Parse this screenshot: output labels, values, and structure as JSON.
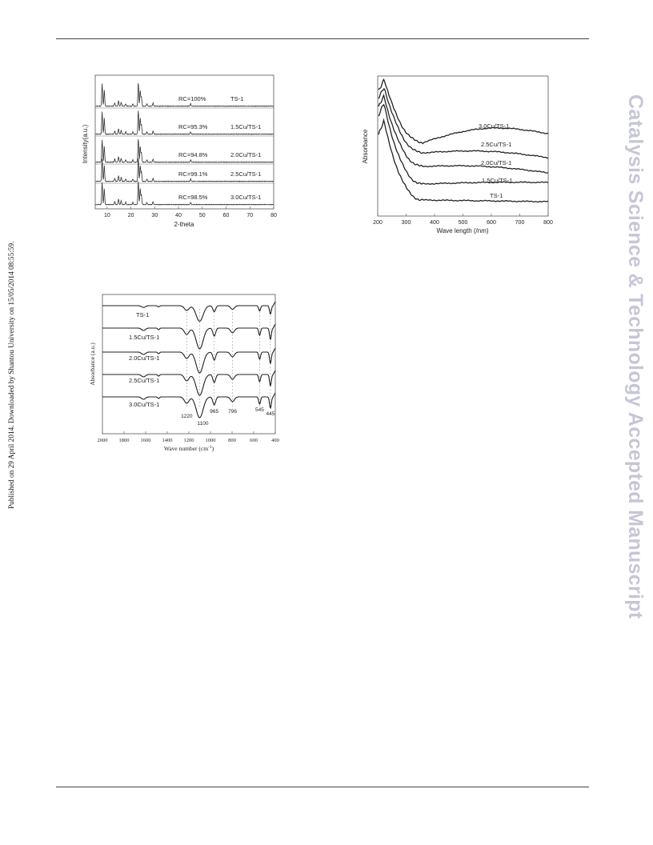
{
  "side_note": "Published on 29 April 2014. Downloaded by Shantou University on 15/05/2014 08:55:59.",
  "watermark": "Catalysis Science & Technology Accepted Manuscript",
  "chart_data": [
    {
      "type": "line",
      "ylabel": "Intensity(a.u.)",
      "xlabel": "2-theta",
      "x_ticks": [
        "10",
        "20",
        "30",
        "40",
        "50",
        "60",
        "70",
        "80"
      ],
      "xlim": [
        5,
        80
      ],
      "traces": [
        {
          "rc": "RC=100%",
          "sample": "TS-1"
        },
        {
          "rc": "RC=95.3%",
          "sample": "1.5Cu/TS-1"
        },
        {
          "rc": "RC=94.8%",
          "sample": "2.0Cu/TS-1"
        },
        {
          "rc": "RC=99.1%",
          "sample": "2.5Cu/TS-1"
        },
        {
          "rc": "RC=98.5%",
          "sample": "3.0Cu/TS-1"
        }
      ]
    },
    {
      "type": "line",
      "ylabel": "Absorbance",
      "xlabel": "Wave length (/nm)",
      "x_ticks": [
        "200",
        "300",
        "400",
        "500",
        "600",
        "700",
        "800"
      ],
      "xlim": [
        200,
        800
      ],
      "series_labels": [
        "3.0Cu/TS-1",
        "2.5Cu/TS-1",
        "2.0Cu/TS-1",
        "1.5Cu/TS-1",
        "TS-1"
      ]
    },
    {
      "type": "line",
      "ylabel": "Absorbance (a.u.)",
      "xlabel": "Wave number (cm",
      "xlabel_sup": "-1",
      "xlabel_close": ")",
      "x_ticks": [
        "2000",
        "1800",
        "1600",
        "1400",
        "1200",
        "1000",
        "800",
        "600",
        "400"
      ],
      "xlim": [
        2000,
        400
      ],
      "series_labels": [
        "TS-1",
        "1.5Cu/TS-1",
        "2.0Cu/TS-1",
        "2.5Cu/TS-1",
        "3.0Cu/TS-1"
      ],
      "band_labels": [
        "1220",
        "1100",
        "965",
        "796",
        "545",
        "445"
      ],
      "bands": [
        1220,
        1100,
        965,
        796,
        545,
        445
      ]
    }
  ]
}
